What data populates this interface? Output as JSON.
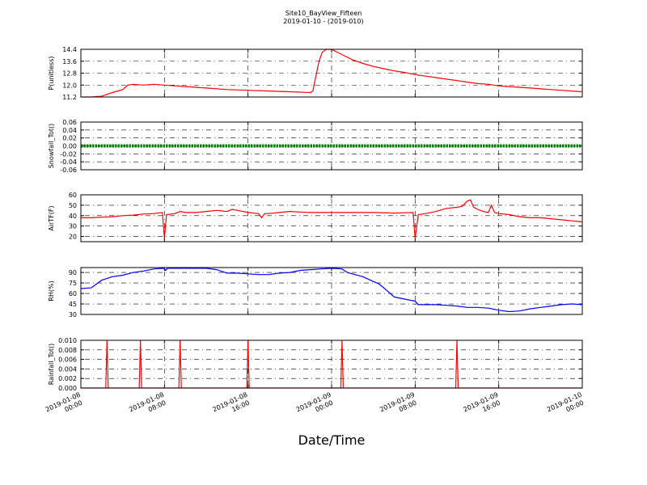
{
  "chart_data": {
    "type": "line",
    "title": "Site10_BayView_Fifteen",
    "subtitle": "2019-01-10 - (2019-010)",
    "xlabel": "Date/Time",
    "x_ticks": [
      {
        "line1": "2019-01-08",
        "line2": "00:00",
        "h": 0
      },
      {
        "line1": "2019-01-08",
        "line2": "08:00",
        "h": 8
      },
      {
        "line1": "2019-01-08",
        "line2": "16:00",
        "h": 16
      },
      {
        "line1": "2019-01-09",
        "line2": "00:00",
        "h": 24
      },
      {
        "line1": "2019-01-09",
        "line2": "08:00",
        "h": 32
      },
      {
        "line1": "2019-01-09",
        "line2": "16:00",
        "h": 40
      },
      {
        "line1": "2019-01-10",
        "line2": "00:00",
        "h": 48
      }
    ],
    "x_unit": "hours since 2019-01-08 00:00",
    "grid": true,
    "panels": [
      {
        "ylabel": "P(unitless)",
        "ylim": [
          11.2,
          14.4
        ],
        "yticks": [
          "11.2",
          "12.0",
          "12.8",
          "13.6",
          "14.4"
        ],
        "color": "#ff0000",
        "style": "line",
        "series": [
          [
            0,
            11.2
          ],
          [
            1,
            11.2
          ],
          [
            2,
            11.25
          ],
          [
            3,
            11.5
          ],
          [
            4,
            11.7
          ],
          [
            4.5,
            12.0
          ],
          [
            5,
            12.05
          ],
          [
            6,
            12.0
          ],
          [
            7,
            12.05
          ],
          [
            8,
            12.0
          ],
          [
            9,
            11.95
          ],
          [
            10,
            11.9
          ],
          [
            11,
            11.85
          ],
          [
            12,
            11.8
          ],
          [
            14,
            11.7
          ],
          [
            16,
            11.65
          ],
          [
            18,
            11.6
          ],
          [
            20,
            11.55
          ],
          [
            22,
            11.5
          ],
          [
            22.2,
            11.6
          ],
          [
            22.5,
            12.6
          ],
          [
            22.8,
            13.6
          ],
          [
            23.1,
            14.2
          ],
          [
            23.5,
            14.4
          ],
          [
            24,
            14.4
          ],
          [
            25,
            14.05
          ],
          [
            26,
            13.7
          ],
          [
            27,
            13.45
          ],
          [
            28,
            13.25
          ],
          [
            29,
            13.1
          ],
          [
            30,
            12.95
          ],
          [
            31,
            12.85
          ],
          [
            32,
            12.7
          ],
          [
            33,
            12.6
          ],
          [
            34,
            12.5
          ],
          [
            35,
            12.4
          ],
          [
            36,
            12.3
          ],
          [
            37,
            12.2
          ],
          [
            38,
            12.1
          ],
          [
            39,
            12.05
          ],
          [
            40,
            11.95
          ],
          [
            41,
            11.9
          ],
          [
            42,
            11.85
          ],
          [
            43,
            11.8
          ],
          [
            44,
            11.75
          ],
          [
            45,
            11.7
          ],
          [
            46,
            11.65
          ],
          [
            47,
            11.6
          ],
          [
            48,
            11.55
          ]
        ]
      },
      {
        "ylabel": "Snowfall_Tot()",
        "ylim": [
          -0.06,
          0.06
        ],
        "yticks": [
          "-0.06",
          "-0.04",
          "-0.02",
          "0.00",
          "0.02",
          "0.04",
          "0.06"
        ],
        "color": "#008000",
        "style": "markers",
        "series": [
          [
            0,
            0
          ],
          [
            48,
            0
          ]
        ]
      },
      {
        "ylabel": "AirTF(F)",
        "ylim": [
          15,
          60
        ],
        "yticks": [
          "20",
          "30",
          "40",
          "50",
          "60"
        ],
        "color": "#ff0000",
        "style": "line",
        "series": [
          [
            0,
            38
          ],
          [
            1,
            38
          ],
          [
            2,
            38.5
          ],
          [
            3,
            39
          ],
          [
            4,
            40
          ],
          [
            5,
            40.5
          ],
          [
            6,
            41.5
          ],
          [
            7,
            42
          ],
          [
            7.8,
            43
          ],
          [
            8,
            18
          ],
          [
            8.2,
            41
          ],
          [
            9,
            42
          ],
          [
            9.5,
            44
          ],
          [
            10,
            43
          ],
          [
            11,
            43
          ],
          [
            12,
            44
          ],
          [
            13,
            45
          ],
          [
            14,
            44
          ],
          [
            14.5,
            46
          ],
          [
            15,
            45
          ],
          [
            16,
            43
          ],
          [
            17,
            42
          ],
          [
            17.3,
            38
          ],
          [
            17.6,
            42
          ],
          [
            18,
            42
          ],
          [
            19,
            43
          ],
          [
            20,
            44
          ],
          [
            21,
            43.5
          ],
          [
            22,
            43
          ],
          [
            24,
            43
          ],
          [
            26,
            43
          ],
          [
            28,
            43
          ],
          [
            30,
            42.5
          ],
          [
            31.8,
            43
          ],
          [
            32,
            18
          ],
          [
            32.3,
            41
          ],
          [
            33,
            42
          ],
          [
            34,
            44
          ],
          [
            35,
            47
          ],
          [
            36,
            48
          ],
          [
            36.5,
            49
          ],
          [
            37,
            54
          ],
          [
            37.3,
            55
          ],
          [
            37.6,
            48
          ],
          [
            38,
            46
          ],
          [
            38.5,
            44
          ],
          [
            39,
            43
          ],
          [
            39.3,
            50
          ],
          [
            39.6,
            43
          ],
          [
            40,
            42
          ],
          [
            41,
            41
          ],
          [
            42,
            39
          ],
          [
            43,
            38
          ],
          [
            44,
            38
          ],
          [
            45,
            37
          ],
          [
            46,
            36
          ],
          [
            47,
            35
          ],
          [
            48,
            34
          ]
        ]
      },
      {
        "ylabel": "RH(%)",
        "ylim": [
          30,
          97
        ],
        "yticks": [
          "30",
          "45",
          "60",
          "75",
          "90"
        ],
        "color": "#0000ff",
        "style": "line",
        "series": [
          [
            0,
            67
          ],
          [
            1,
            68
          ],
          [
            2,
            79
          ],
          [
            3,
            84
          ],
          [
            4,
            86
          ],
          [
            5,
            90
          ],
          [
            6,
            92
          ],
          [
            7,
            95
          ],
          [
            8,
            96
          ],
          [
            8.1,
            93
          ],
          [
            8.3,
            96
          ],
          [
            9,
            96
          ],
          [
            10,
            96
          ],
          [
            11,
            96
          ],
          [
            12,
            96
          ],
          [
            13,
            94
          ],
          [
            14,
            89
          ],
          [
            15,
            89
          ],
          [
            16,
            88
          ],
          [
            17,
            87
          ],
          [
            18,
            87
          ],
          [
            19,
            89
          ],
          [
            20,
            90
          ],
          [
            21,
            93
          ],
          [
            22,
            94
          ],
          [
            23,
            95
          ],
          [
            24,
            96
          ],
          [
            25,
            95
          ],
          [
            25.5,
            90
          ],
          [
            26,
            88
          ],
          [
            27,
            84
          ],
          [
            28,
            77
          ],
          [
            28.5,
            74
          ],
          [
            29,
            68
          ],
          [
            30,
            55
          ],
          [
            31,
            52
          ],
          [
            32,
            49
          ],
          [
            32.3,
            44
          ],
          [
            33,
            44
          ],
          [
            34,
            44
          ],
          [
            35,
            43
          ],
          [
            36,
            42
          ],
          [
            37,
            40
          ],
          [
            38,
            40
          ],
          [
            39,
            39
          ],
          [
            40,
            36
          ],
          [
            41,
            34
          ],
          [
            42,
            35
          ],
          [
            43,
            38
          ],
          [
            44,
            40
          ],
          [
            45,
            42
          ],
          [
            46,
            44
          ],
          [
            47,
            45
          ],
          [
            48,
            44
          ]
        ]
      },
      {
        "ylabel": "Rainfall_Tot()",
        "ylim": [
          0,
          0.01
        ],
        "yticks": [
          "0.000",
          "0.002",
          "0.004",
          "0.006",
          "0.008",
          "0.010"
        ],
        "color": "#ff0000",
        "style": "spikes",
        "spikes": [
          2.5,
          5.7,
          9.5,
          16,
          25,
          36
        ],
        "series": []
      }
    ]
  }
}
